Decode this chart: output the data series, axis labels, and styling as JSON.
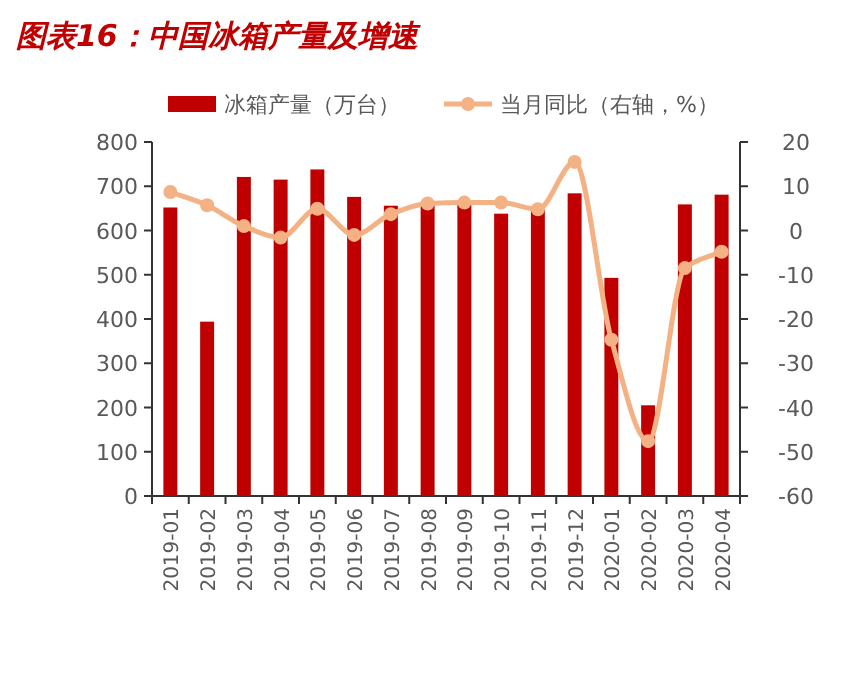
{
  "chart_data": {
    "type": "bar",
    "title": "图表16：中国冰箱产量及增速",
    "categories": [
      "2019-01",
      "2019-02",
      "2019-03",
      "2019-04",
      "2019-05",
      "2019-06",
      "2019-07",
      "2019-08",
      "2019-09",
      "2019-10",
      "2019-11",
      "2019-12",
      "2020-01",
      "2020-02",
      "2020-03",
      "2020-04"
    ],
    "series": [
      {
        "name": "冰箱产量（万台）",
        "color": "#c00000",
        "values": [
          652,
          394,
          721,
          715,
          738,
          676,
          656,
          660,
          661,
          638,
          646,
          684,
          493,
          205,
          659,
          681
        ]
      },
      {
        "name": "当月同比（右轴，%）",
        "type": "line",
        "axis": "y2",
        "color": "#f4b183",
        "marker": "circle",
        "values": [
          8.7,
          5.7,
          1.0,
          -1.6,
          4.9,
          -1.0,
          3.7,
          6.1,
          6.3,
          6.3,
          4.8,
          15.5,
          -24.7,
          -47.6,
          -8.5,
          -4.8
        ]
      }
    ],
    "ylim": [
      0,
      800
    ],
    "yticks": [
      0,
      100,
      200,
      300,
      400,
      500,
      600,
      700,
      800
    ],
    "y2lim": [
      -60,
      20
    ],
    "y2ticks": [
      -60,
      -50,
      -40,
      -30,
      -20,
      -10,
      0,
      10,
      20
    ],
    "legend": "top",
    "grid": false
  }
}
